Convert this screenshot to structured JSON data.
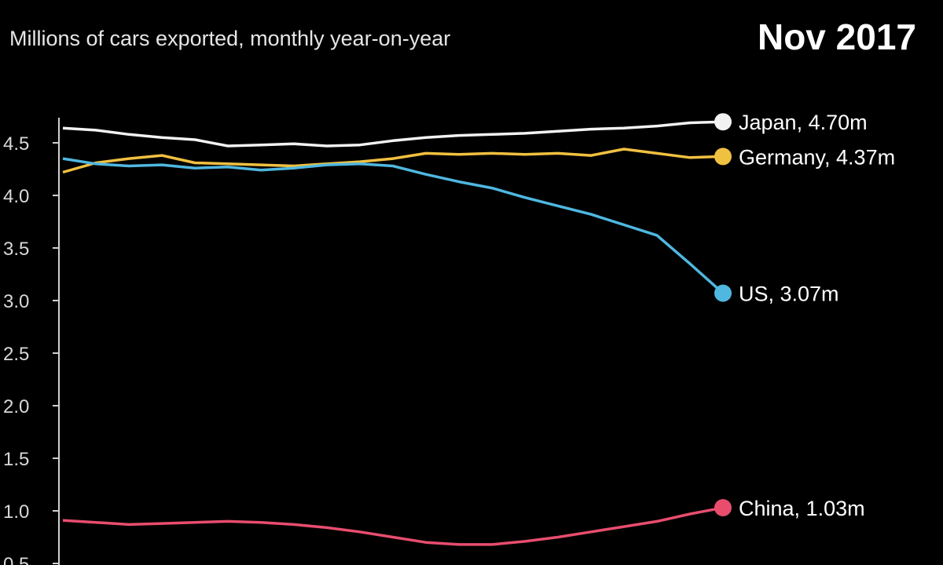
{
  "subtitle": "Millions of cars exported, monthly year-on-year",
  "date_label": "Nov 2017",
  "colors": {
    "Japan": "#f2f2f2",
    "Germany": "#f0c040",
    "US": "#4fb7e0",
    "China": "#e84d6e"
  },
  "chart_data": {
    "type": "line",
    "title": "",
    "xlabel": "",
    "ylabel": "",
    "ylim": [
      0.5,
      4.7
    ],
    "yticks": [
      "0.5",
      "1.0",
      "1.5",
      "2.0",
      "2.5",
      "3.0",
      "3.5",
      "4.0",
      "4.5"
    ],
    "grid": false,
    "series": [
      {
        "name": "Japan",
        "end_label": "Japan, 4.70m",
        "values": [
          4.64,
          4.62,
          4.58,
          4.55,
          4.53,
          4.47,
          4.48,
          4.49,
          4.47,
          4.48,
          4.52,
          4.55,
          4.57,
          4.58,
          4.59,
          4.61,
          4.63,
          4.64,
          4.66,
          4.69,
          4.7
        ]
      },
      {
        "name": "Germany",
        "end_label": "Germany, 4.37m",
        "values": [
          4.22,
          4.31,
          4.35,
          4.38,
          4.31,
          4.3,
          4.29,
          4.28,
          4.3,
          4.32,
          4.35,
          4.4,
          4.39,
          4.4,
          4.39,
          4.4,
          4.38,
          4.44,
          4.4,
          4.36,
          4.37
        ]
      },
      {
        "name": "US",
        "end_label": "US, 3.07m",
        "values": [
          4.35,
          4.3,
          4.28,
          4.29,
          4.26,
          4.27,
          4.24,
          4.26,
          4.29,
          4.3,
          4.28,
          4.2,
          4.13,
          4.07,
          3.98,
          3.9,
          3.82,
          3.72,
          3.62,
          3.35,
          3.07
        ]
      },
      {
        "name": "China",
        "end_label": "China, 1.03m",
        "values": [
          0.91,
          0.89,
          0.87,
          0.88,
          0.89,
          0.9,
          0.89,
          0.87,
          0.84,
          0.8,
          0.75,
          0.7,
          0.68,
          0.68,
          0.71,
          0.75,
          0.8,
          0.85,
          0.9,
          0.97,
          1.03
        ]
      }
    ]
  }
}
